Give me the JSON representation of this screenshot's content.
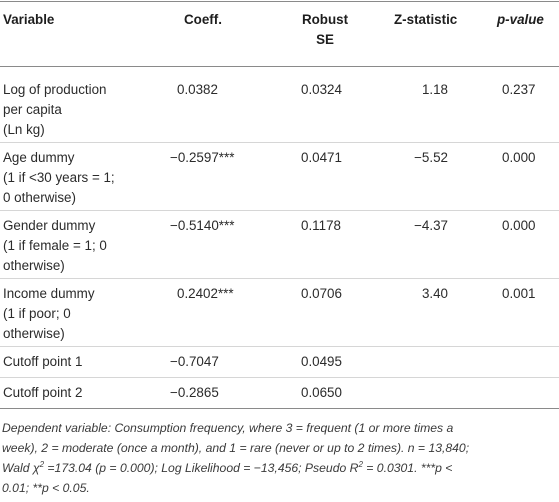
{
  "headers": {
    "variable": "Variable",
    "coeff": "Coeff.",
    "se_line1": "Robust",
    "se_line2": "SE",
    "z": "Z-statistic",
    "p": "p-value"
  },
  "rows": [
    {
      "label": [
        "Log of production",
        "per capita",
        "(Ln kg)"
      ],
      "coeff": "0.0382",
      "se": "0.0324",
      "z": "1.18",
      "p": "0.237"
    },
    {
      "label": [
        "Age dummy",
        "(1 if <30 years = 1;",
        "0 otherwise)"
      ],
      "coeff": "−0.2597***",
      "se": "0.0471",
      "z": "−5.52",
      "p": "0.000"
    },
    {
      "label": [
        "Gender dummy",
        "(1 if female = 1; 0",
        "otherwise)"
      ],
      "coeff": "−0.5140***",
      "se": "0.1178",
      "z": "−4.37",
      "p": "0.000"
    },
    {
      "label": [
        "Income dummy",
        "(1 if poor; 0",
        "otherwise)"
      ],
      "coeff": "0.2402***",
      "se": "0.0706",
      "z": "3.40",
      "p": "0.001"
    },
    {
      "label": [
        "Cutoff point 1"
      ],
      "coeff": "−0.7047",
      "se": "0.0495",
      "z": "",
      "p": ""
    },
    {
      "label": [
        "Cutoff point 2"
      ],
      "coeff": "−0.2865",
      "se": "0.0650",
      "z": "",
      "p": ""
    }
  ],
  "note": {
    "line1": "Dependent variable: Consumption frequency, where 3 = frequent (1 or more times a",
    "line2": "week), 2 = moderate (once a month), and 1 = rare (never or up to 2 times). n = 13,840;",
    "line3_a": "Wald χ",
    "line3_sup1": "2",
    "line3_b": " =173.04 (p = 0.000); Log Likelihood = −13,456; Pseudo R",
    "line3_sup2": "2",
    "line3_c": " = 0.0301. ***p <",
    "line4": "0.01; **p < 0.05."
  }
}
